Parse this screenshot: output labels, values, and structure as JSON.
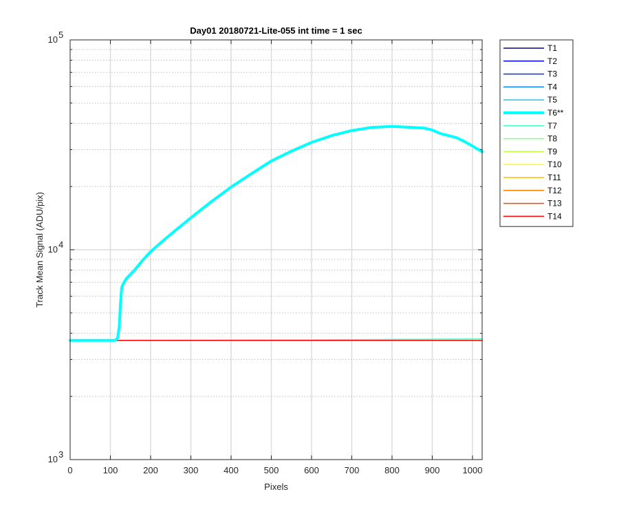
{
  "chart_data": {
    "type": "line",
    "title": "Day01 20180721-Lite-055 int time = 1 sec",
    "xlabel": "Pixels",
    "ylabel": "Track Mean Signal (ADU/pix)",
    "xlim": [
      0,
      1024
    ],
    "ylim": [
      1000,
      100000
    ],
    "yscale": "log",
    "grid": true,
    "legend_position": "outside-right",
    "x_ticks": [
      0,
      100,
      200,
      300,
      400,
      500,
      600,
      700,
      800,
      900,
      1000
    ],
    "y_ticks": [
      {
        "value": 1000,
        "base": "10",
        "exp": "3"
      },
      {
        "value": 10000,
        "base": "10",
        "exp": "4"
      },
      {
        "value": 100000,
        "base": "10",
        "exp": "5"
      }
    ],
    "series": [
      {
        "name": "T1",
        "color": "#00008f",
        "baseline": 3700
      },
      {
        "name": "T2",
        "color": "#0000df",
        "baseline": 3700
      },
      {
        "name": "T3",
        "color": "#0030ff",
        "baseline": 3700
      },
      {
        "name": "T4",
        "color": "#0080ff",
        "baseline": 3700
      },
      {
        "name": "T5",
        "color": "#00cfff",
        "baseline": 3700
      },
      {
        "name": "T6**",
        "color": "#00ffff",
        "highlight": true,
        "x": [
          0,
          100,
          112,
          118,
          122,
          125,
          128,
          132,
          140,
          160,
          180,
          200,
          230,
          260,
          300,
          350,
          400,
          450,
          500,
          550,
          600,
          650,
          700,
          750,
          800,
          850,
          880,
          900,
          920,
          940,
          960,
          980,
          1000,
          1024
        ],
        "values": [
          3700,
          3700,
          3700,
          3800,
          4300,
          5500,
          6600,
          6900,
          7300,
          8000,
          8900,
          9800,
          11000,
          12300,
          14200,
          16900,
          19900,
          23000,
          26500,
          29500,
          32500,
          35000,
          37000,
          38300,
          38700,
          38300,
          38000,
          37200,
          35800,
          35000,
          34200,
          32800,
          31200,
          29300
        ]
      },
      {
        "name": "T7",
        "color": "#40ffbf",
        "baseline": 3700,
        "x": [
          0,
          600,
          1024
        ],
        "values": [
          3700,
          3720,
          3760
        ]
      },
      {
        "name": "T8",
        "color": "#80ff80",
        "baseline": 3700
      },
      {
        "name": "T9",
        "color": "#bfff40",
        "baseline": 3700
      },
      {
        "name": "T10",
        "color": "#ffff00",
        "baseline": 3700
      },
      {
        "name": "T11",
        "color": "#ffbf00",
        "baseline": 3700
      },
      {
        "name": "T12",
        "color": "#ff8000",
        "baseline": 3700
      },
      {
        "name": "T13",
        "color": "#ff4000",
        "baseline": 3700
      },
      {
        "name": "T14",
        "color": "#ff0000",
        "baseline": 3700
      }
    ]
  }
}
